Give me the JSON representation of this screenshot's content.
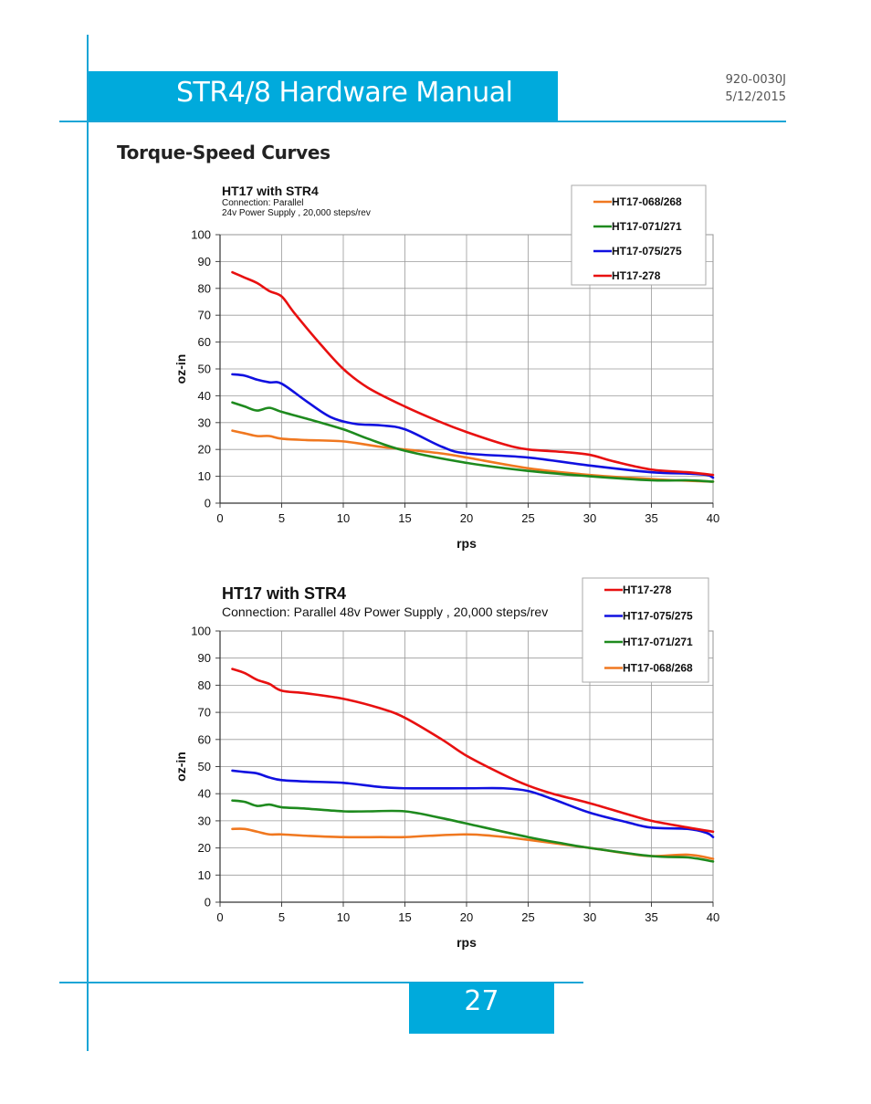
{
  "header": {
    "title": "STR4/8 Hardware Manual",
    "doc_number": "920-0030J",
    "date": "5/12/2015"
  },
  "section": {
    "heading": "Torque-Speed Curves"
  },
  "footer": {
    "page_number": "27"
  },
  "colors": {
    "accent": "#00aadc",
    "HT17-068/268": "#f07820",
    "HT17-071/271": "#1e8a1e",
    "HT17-075/275": "#1010e0",
    "HT17-278": "#e81010"
  },
  "chart_data": [
    {
      "type": "line",
      "title": "HT17 with STR4",
      "subtitle_lines": [
        "Connection: Parallel",
        "24v Power Supply , 20,000 steps/rev"
      ],
      "xlabel": "rps",
      "ylabel": "oz-in",
      "xlim": [
        0,
        40
      ],
      "ylim": [
        0,
        100
      ],
      "xticks": [
        0,
        5,
        10,
        15,
        20,
        25,
        30,
        35,
        40
      ],
      "yticks": [
        0,
        10,
        20,
        30,
        40,
        50,
        60,
        70,
        80,
        90,
        100
      ],
      "grid": true,
      "legend_position": "top-right",
      "series": [
        {
          "name": "HT17-068/268",
          "color": "#f07820",
          "points": [
            [
              1,
              27
            ],
            [
              2,
              26
            ],
            [
              3,
              25
            ],
            [
              4,
              25
            ],
            [
              5,
              24
            ],
            [
              7,
              23.5
            ],
            [
              10,
              23
            ],
            [
              13,
              21
            ],
            [
              15,
              20
            ],
            [
              18,
              18.5
            ],
            [
              20,
              17
            ],
            [
              25,
              13
            ],
            [
              30,
              10.5
            ],
            [
              35,
              9
            ],
            [
              37,
              8.5
            ],
            [
              40,
              8
            ]
          ]
        },
        {
          "name": "HT17-071/271",
          "color": "#1e8a1e",
          "points": [
            [
              1,
              37.5
            ],
            [
              2,
              36
            ],
            [
              3,
              34.5
            ],
            [
              4,
              35.5
            ],
            [
              5,
              34
            ],
            [
              7,
              31.5
            ],
            [
              10,
              27.5
            ],
            [
              12,
              24
            ],
            [
              15,
              19.5
            ],
            [
              20,
              15
            ],
            [
              25,
              12
            ],
            [
              30,
              10
            ],
            [
              35,
              8.5
            ],
            [
              38,
              8.5
            ],
            [
              40,
              8
            ]
          ]
        },
        {
          "name": "HT17-075/275",
          "color": "#1010e0",
          "points": [
            [
              1,
              48
            ],
            [
              2,
              47.5
            ],
            [
              3,
              46
            ],
            [
              4,
              45
            ],
            [
              5,
              44.5
            ],
            [
              7,
              38
            ],
            [
              9,
              32
            ],
            [
              11,
              29.5
            ],
            [
              13,
              29
            ],
            [
              15,
              27.5
            ],
            [
              18,
              21
            ],
            [
              20,
              18.5
            ],
            [
              25,
              17
            ],
            [
              30,
              14
            ],
            [
              35,
              11.5
            ],
            [
              38,
              11
            ],
            [
              39.5,
              10.5
            ],
            [
              40,
              9.5
            ]
          ]
        },
        {
          "name": "HT17-278",
          "color": "#e81010",
          "points": [
            [
              1,
              86
            ],
            [
              2,
              84
            ],
            [
              3,
              82
            ],
            [
              4,
              79
            ],
            [
              5,
              77
            ],
            [
              6,
              71
            ],
            [
              8,
              60
            ],
            [
              10,
              50
            ],
            [
              12,
              43
            ],
            [
              15,
              36
            ],
            [
              18,
              30
            ],
            [
              20,
              26.5
            ],
            [
              23,
              22
            ],
            [
              25,
              20
            ],
            [
              28,
              19
            ],
            [
              30,
              18
            ],
            [
              32,
              15.5
            ],
            [
              35,
              12.5
            ],
            [
              38,
              11.5
            ],
            [
              40,
              10.5
            ]
          ]
        }
      ]
    },
    {
      "type": "line",
      "title": "HT17 with STR4",
      "subtitle_lines": [
        "Connection: Parallel  48v Power Supply , 20,000 steps/rev"
      ],
      "xlabel": "rps",
      "ylabel": "oz-in",
      "xlim": [
        0,
        40
      ],
      "ylim": [
        0,
        100
      ],
      "xticks": [
        0,
        5,
        10,
        15,
        20,
        25,
        30,
        35,
        40
      ],
      "yticks": [
        0,
        10,
        20,
        30,
        40,
        50,
        60,
        70,
        80,
        90,
        100
      ],
      "grid": true,
      "legend_position": "top-right",
      "series": [
        {
          "name": "HT17-278",
          "color": "#e81010",
          "points": [
            [
              1,
              86
            ],
            [
              2,
              84.5
            ],
            [
              3,
              82
            ],
            [
              4,
              80.5
            ],
            [
              5,
              78
            ],
            [
              7,
              77
            ],
            [
              10,
              75
            ],
            [
              13,
              71.5
            ],
            [
              15,
              68
            ],
            [
              18,
              60
            ],
            [
              20,
              54
            ],
            [
              23,
              47
            ],
            [
              25,
              43
            ],
            [
              27,
              40
            ],
            [
              30,
              36.5
            ],
            [
              33,
              32.5
            ],
            [
              35,
              30
            ],
            [
              38,
              27.5
            ],
            [
              40,
              26
            ]
          ]
        },
        {
          "name": "HT17-075/275",
          "color": "#1010e0",
          "points": [
            [
              1,
              48.5
            ],
            [
              2,
              48
            ],
            [
              3,
              47.5
            ],
            [
              4,
              46
            ],
            [
              5,
              45
            ],
            [
              7,
              44.5
            ],
            [
              10,
              44
            ],
            [
              13,
              42.5
            ],
            [
              15,
              42
            ],
            [
              20,
              42
            ],
            [
              23,
              42
            ],
            [
              25,
              41
            ],
            [
              27,
              38
            ],
            [
              30,
              33
            ],
            [
              33,
              29.5
            ],
            [
              35,
              27.5
            ],
            [
              38,
              27
            ],
            [
              39.5,
              25.5
            ],
            [
              40,
              24
            ]
          ]
        },
        {
          "name": "HT17-071/271",
          "color": "#1e8a1e",
          "points": [
            [
              1,
              37.5
            ],
            [
              2,
              37
            ],
            [
              3,
              35.5
            ],
            [
              4,
              36
            ],
            [
              5,
              35
            ],
            [
              7,
              34.5
            ],
            [
              10,
              33.5
            ],
            [
              12,
              33.5
            ],
            [
              15,
              33.5
            ],
            [
              18,
              31
            ],
            [
              20,
              29
            ],
            [
              25,
              24
            ],
            [
              28,
              21.5
            ],
            [
              30,
              20
            ],
            [
              35,
              17
            ],
            [
              38,
              16.5
            ],
            [
              40,
              15
            ]
          ]
        },
        {
          "name": "HT17-068/268",
          "color": "#f07820",
          "points": [
            [
              1,
              27
            ],
            [
              2,
              27
            ],
            [
              3,
              26
            ],
            [
              4,
              25
            ],
            [
              5,
              25
            ],
            [
              7,
              24.5
            ],
            [
              10,
              24
            ],
            [
              13,
              24
            ],
            [
              15,
              24
            ],
            [
              17,
              24.5
            ],
            [
              20,
              25
            ],
            [
              22,
              24.5
            ],
            [
              25,
              23
            ],
            [
              30,
              20
            ],
            [
              33,
              18
            ],
            [
              35,
              17
            ],
            [
              38,
              17.5
            ],
            [
              40,
              16
            ]
          ]
        }
      ]
    }
  ]
}
